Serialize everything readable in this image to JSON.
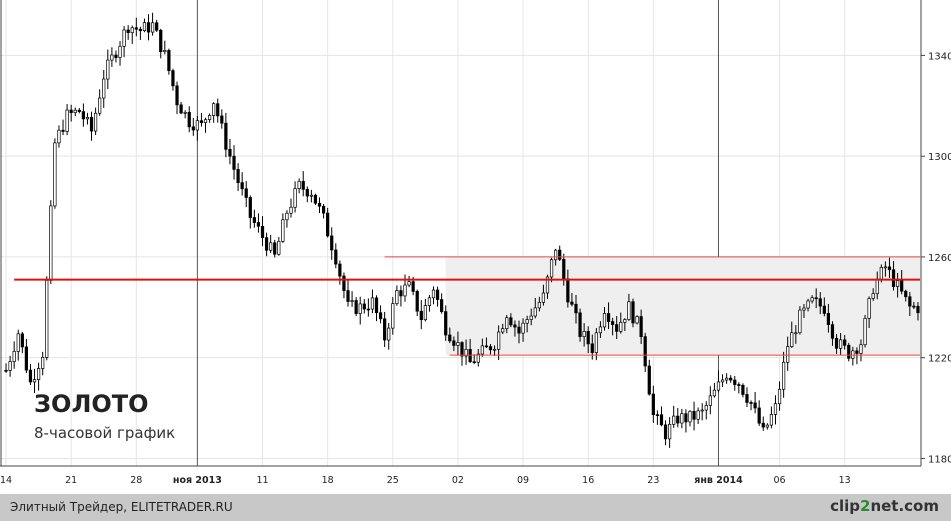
{
  "chart_data": {
    "type": "candlestick",
    "title": "ЗОЛОТО",
    "subtitle": "8-часовой график",
    "y_ticks": [
      1180,
      1220,
      1260,
      1300,
      1340
    ],
    "ylim": [
      1177,
      1362
    ],
    "x_ticks": [
      {
        "label": "14",
        "bold": false
      },
      {
        "label": "21",
        "bold": false
      },
      {
        "label": "28",
        "bold": false
      },
      {
        "label": "ноя 2013",
        "bold": true
      },
      {
        "label": "11",
        "bold": false
      },
      {
        "label": "18",
        "bold": false
      },
      {
        "label": "25",
        "bold": false
      },
      {
        "label": "02",
        "bold": false
      },
      {
        "label": "09",
        "bold": false
      },
      {
        "label": "16",
        "bold": false
      },
      {
        "label": "23",
        "bold": false
      },
      {
        "label": "янв 2014",
        "bold": true
      },
      {
        "label": "06",
        "bold": false
      },
      {
        "label": "13",
        "bold": false
      }
    ],
    "levels": {
      "resistance": 1251,
      "range_top": 1260,
      "range_bottom": 1221
    },
    "trend_line_color": "#e01010",
    "range_color": "#f04040",
    "up_color": "#ffffff",
    "down_color": "#000000",
    "price_path": [
      [
        0,
        1215
      ],
      [
        3,
        1230
      ],
      [
        6,
        1210
      ],
      [
        9,
        1222
      ],
      [
        12,
        1305
      ],
      [
        15,
        1316
      ],
      [
        18,
        1318
      ],
      [
        21,
        1310
      ],
      [
        24,
        1332
      ],
      [
        27,
        1342
      ],
      [
        30,
        1352
      ],
      [
        33,
        1350
      ],
      [
        36,
        1352
      ],
      [
        39,
        1340
      ],
      [
        42,
        1322
      ],
      [
        45,
        1314
      ],
      [
        48,
        1312
      ],
      [
        51,
        1322
      ],
      [
        54,
        1305
      ],
      [
        57,
        1290
      ],
      [
        60,
        1276
      ],
      [
        63,
        1268
      ],
      [
        66,
        1260
      ],
      [
        69,
        1278
      ],
      [
        72,
        1288
      ],
      [
        75,
        1286
      ],
      [
        78,
        1275
      ],
      [
        81,
        1260
      ],
      [
        84,
        1240
      ],
      [
        87,
        1240
      ],
      [
        90,
        1242
      ],
      [
        93,
        1228
      ],
      [
        96,
        1246
      ],
      [
        99,
        1248
      ],
      [
        102,
        1236
      ],
      [
        105,
        1248
      ],
      [
        108,
        1232
      ],
      [
        111,
        1225
      ],
      [
        114,
        1218
      ],
      [
        117,
        1222
      ],
      [
        120,
        1226
      ],
      [
        123,
        1238
      ],
      [
        126,
        1230
      ],
      [
        129,
        1238
      ],
      [
        132,
        1244
      ],
      [
        135,
        1264
      ],
      [
        138,
        1245
      ],
      [
        141,
        1230
      ],
      [
        144,
        1224
      ],
      [
        147,
        1240
      ],
      [
        150,
        1232
      ],
      [
        153,
        1240
      ],
      [
        156,
        1230
      ],
      [
        159,
        1197
      ],
      [
        162,
        1190
      ],
      [
        165,
        1196
      ],
      [
        168,
        1196
      ],
      [
        171,
        1198
      ],
      [
        174,
        1206
      ],
      [
        177,
        1214
      ],
      [
        180,
        1210
      ],
      [
        183,
        1202
      ],
      [
        186,
        1190
      ],
      [
        189,
        1200
      ],
      [
        192,
        1225
      ],
      [
        195,
        1236
      ],
      [
        198,
        1242
      ],
      [
        201,
        1240
      ],
      [
        204,
        1226
      ],
      [
        207,
        1222
      ],
      [
        210,
        1226
      ],
      [
        213,
        1248
      ],
      [
        216,
        1256
      ],
      [
        219,
        1248
      ],
      [
        222,
        1240
      ]
    ]
  },
  "footer": {
    "left": "Элитный Трейдер, ELITETRADER.RU",
    "brand_a": "clip",
    "brand_b": "2",
    "brand_c": "net",
    "brand_d": ".com"
  }
}
